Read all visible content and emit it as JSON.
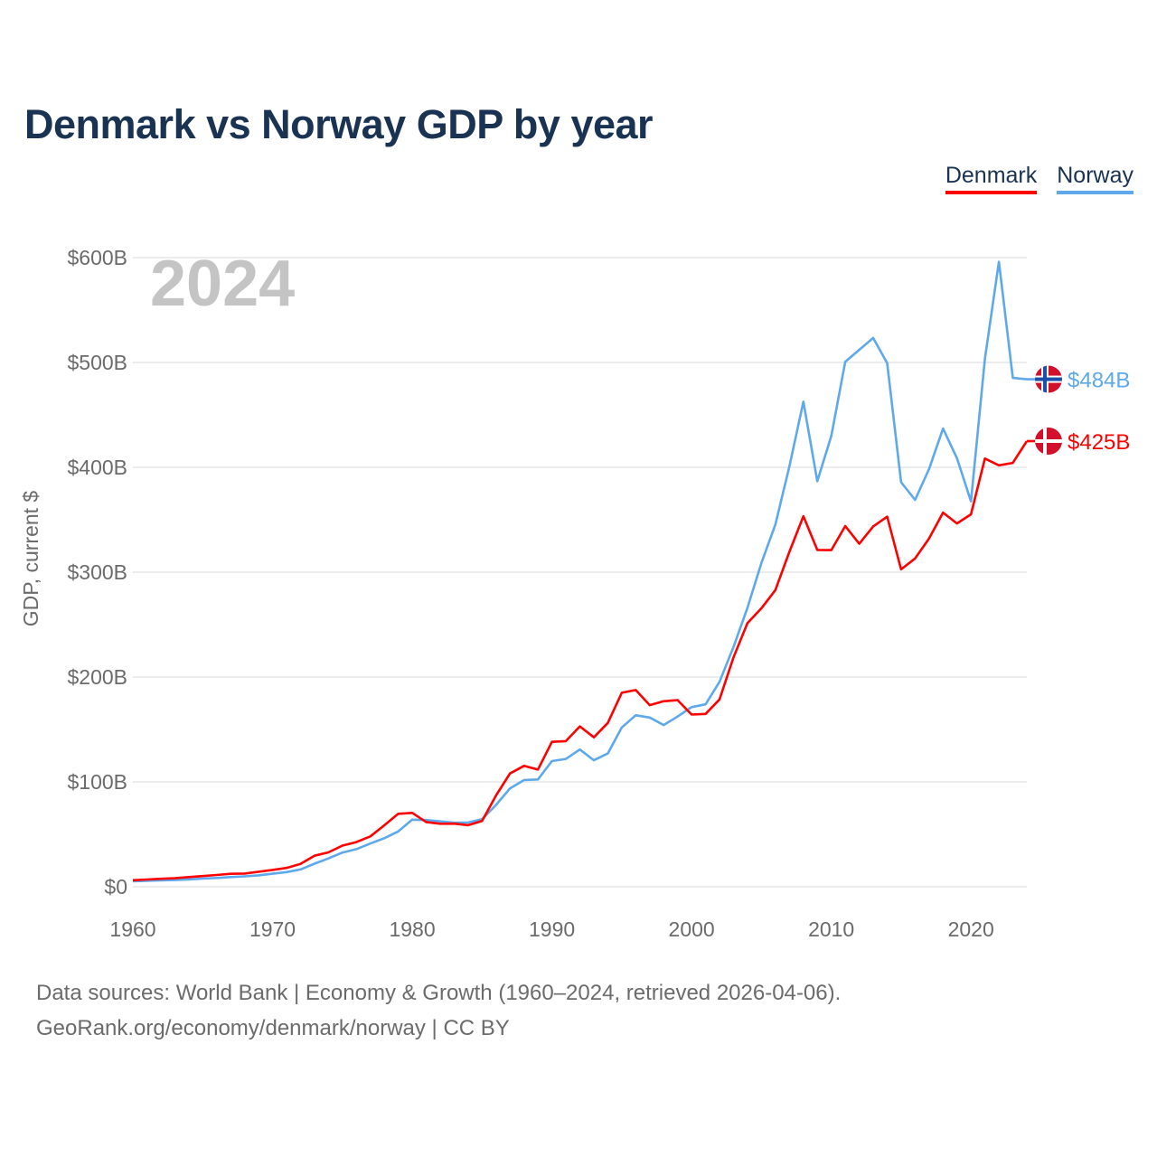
{
  "chart_data": {
    "type": "line",
    "title": "Denmark vs Norway GDP by year",
    "ylabel": "GDP, current $",
    "xlabel": "",
    "xlim": [
      1960,
      2024
    ],
    "ylim": [
      0,
      600
    ],
    "yunit": "billions USD",
    "grid": true,
    "legend_position": "top-right",
    "year_watermark": "2024",
    "x_ticks": [
      "1960",
      "1970",
      "1980",
      "1990",
      "2000",
      "2010",
      "2020"
    ],
    "y_ticks": [
      {
        "value": 0,
        "label": "$0"
      },
      {
        "value": 100,
        "label": "$100B"
      },
      {
        "value": 200,
        "label": "$200B"
      },
      {
        "value": 300,
        "label": "$300B"
      },
      {
        "value": 400,
        "label": "$400B"
      },
      {
        "value": 500,
        "label": "$500B"
      },
      {
        "value": 600,
        "label": "$600B"
      }
    ],
    "x_start": 1960,
    "series": [
      {
        "name": "Denmark",
        "color": "#ff0000",
        "end_label": "$425B",
        "flag": "denmark-flag",
        "values": [
          6.2,
          6.9,
          7.6,
          8.1,
          9.2,
          10.2,
          11.2,
          12.3,
          12.6,
          14.3,
          16.0,
          17.9,
          21.7,
          29.6,
          32.8,
          39.2,
          42.6,
          48.0,
          58.6,
          69.6,
          70.4,
          61.7,
          60.1,
          60.2,
          58.7,
          62.7,
          87.1,
          108.0,
          115.3,
          111.7,
          138.2,
          138.9,
          152.9,
          142.5,
          156.2,
          185.0,
          187.6,
          173.2,
          176.9,
          177.9,
          164.2,
          164.8,
          178.6,
          218.8,
          251.4,
          265.6,
          282.9,
          319.4,
          353.4,
          321.2,
          321.0,
          344.0,
          327.1,
          343.6,
          352.9,
          302.7,
          313.1,
          332.1,
          356.8,
          346.5,
          355.2,
          408.4,
          401.9,
          404.2,
          425.0
        ]
      },
      {
        "name": "Norway",
        "color": "#5ea8ec",
        "end_label": "$484B",
        "flag": "norway-flag",
        "values": [
          5.2,
          5.6,
          6.0,
          6.4,
          7.0,
          7.8,
          8.4,
          9.2,
          9.9,
          10.9,
          12.4,
          14.0,
          16.5,
          22.0,
          27.0,
          32.6,
          35.9,
          41.2,
          46.3,
          52.8,
          64.0,
          63.6,
          62.3,
          61.0,
          61.3,
          64.4,
          78.0,
          93.8,
          101.7,
          102.3,
          119.8,
          121.9,
          130.9,
          120.6,
          127.1,
          151.9,
          163.5,
          161.4,
          154.2,
          162.3,
          171.3,
          174.0,
          195.4,
          228.7,
          266.0,
          308.9,
          345.4,
          400.9,
          462.6,
          386.7,
          430.0,
          500.7,
          512.1,
          523.4,
          499.3,
          385.8,
          369.0,
          398.4,
          437.0,
          408.7,
          367.6,
          503.4,
          596.0,
          485.3,
          484.0
        ]
      }
    ]
  },
  "footer": {
    "sources": "Data sources: World Bank | Economy & Growth (1960–2024, retrieved 2026-04-06).",
    "credit": "GeoRank.org/economy/denmark/norway | CC BY"
  }
}
